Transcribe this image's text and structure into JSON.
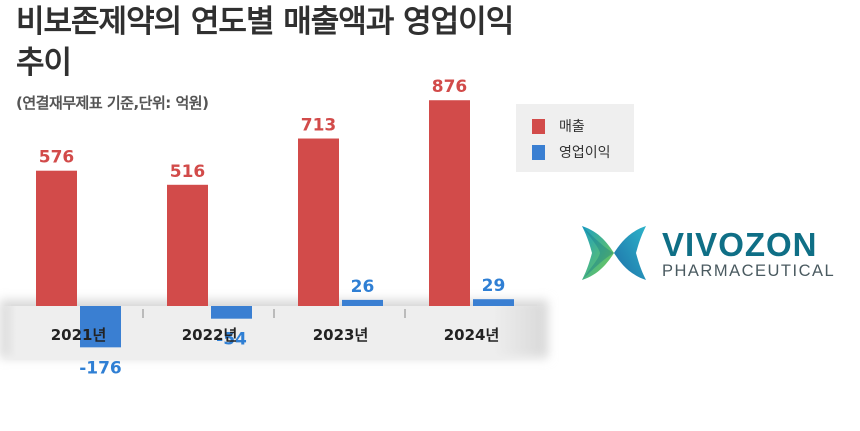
{
  "header": {
    "title": "비보존제약의 연도별 매출액과 영업이익 추이",
    "subtitle": "(연결재무제표 기준,단위: 억원)"
  },
  "legend": {
    "items": [
      {
        "label": "매출",
        "color": "#d24b4a"
      },
      {
        "label": "영업이익",
        "color": "#3a7fd2"
      }
    ]
  },
  "logo": {
    "name": "VIVOZON",
    "tagline": "PHARMACEUTICAL"
  },
  "chart_data": {
    "type": "bar",
    "categories": [
      "2021년",
      "2022년",
      "2023년",
      "2024년"
    ],
    "series": [
      {
        "name": "매출",
        "values": [
          576,
          516,
          713,
          876
        ],
        "color": "#d24b4a"
      },
      {
        "name": "영업이익",
        "values": [
          -176,
          -54,
          26,
          29
        ],
        "color": "#3a7fd2"
      }
    ],
    "data_labels": {
      "sales": [
        "576",
        "516",
        "713",
        "876"
      ],
      "operating_profit": [
        "-176",
        "-54",
        "26",
        "29"
      ]
    },
    "label_colors": {
      "sales": "#d24b4a",
      "operating_profit": "#2f7fd4"
    },
    "legend_position": "top-right",
    "grid": false
  }
}
